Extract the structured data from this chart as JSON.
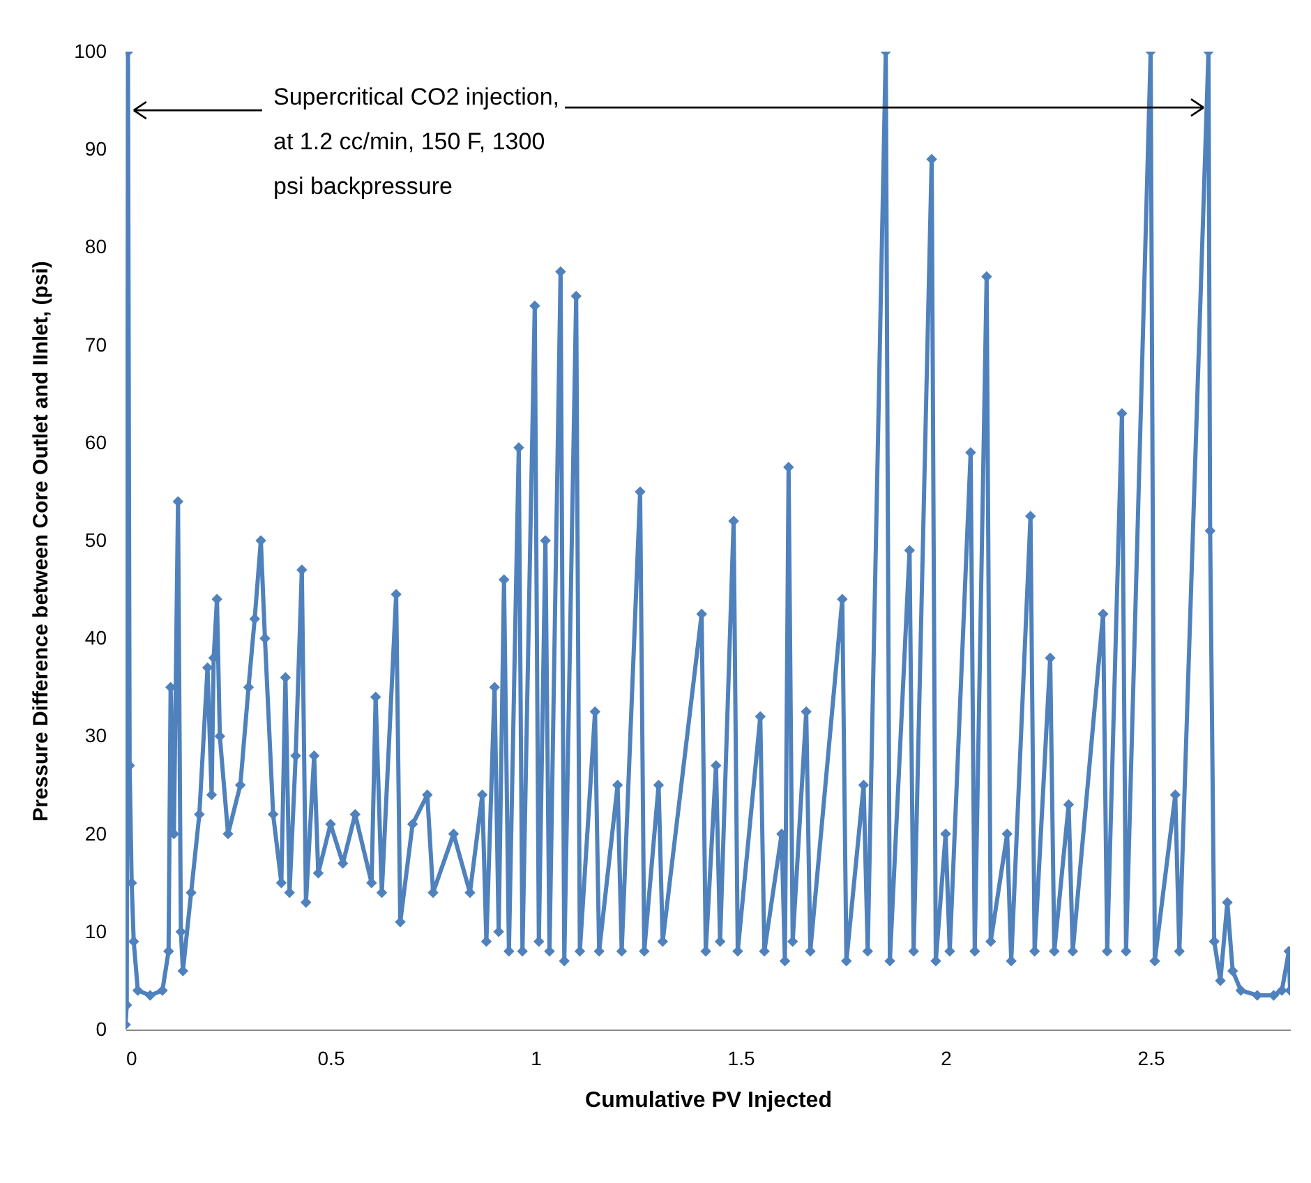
{
  "chart_data": {
    "type": "line",
    "xlabel": "Cumulative PV Injected",
    "ylabel": "Pressure Difference between Core Outlet and IInlet, (psi)",
    "annotations": [
      {
        "text": "Supercritical CO2 injection, at 1.2 cc/min, 150 F, 1300 psi backpressure",
        "x": 0.02,
        "y": 94
      }
    ],
    "xlim": [
      0,
      2.84
    ],
    "xticks": [
      0,
      0.5,
      1,
      1.5,
      2,
      2.5
    ],
    "ylim": [
      0,
      100
    ],
    "yticks": [
      0,
      10,
      20,
      30,
      40,
      50,
      60,
      70,
      80,
      90,
      100
    ],
    "marker": "diamond",
    "grid": false,
    "series": [
      {
        "color": "#4f81bd",
        "x": [
          0,
          0.003,
          0.006,
          0.01,
          0.015,
          0.02,
          0.03,
          0.06,
          0.09,
          0.105,
          0.11,
          0.118,
          0.128,
          0.135,
          0.14,
          0.16,
          0.18,
          0.2,
          0.21,
          0.215,
          0.223,
          0.23,
          0.25,
          0.28,
          0.3,
          0.315,
          0.33,
          0.34,
          0.36,
          0.38,
          0.39,
          0.4,
          0.415,
          0.43,
          0.44,
          0.46,
          0.47,
          0.5,
          0.53,
          0.56,
          0.6,
          0.61,
          0.625,
          0.66,
          0.67,
          0.7,
          0.736,
          0.75,
          0.8,
          0.84,
          0.87,
          0.88,
          0.9,
          0.91,
          0.923,
          0.935,
          0.959,
          0.968,
          0.998,
          1.008,
          1.024,
          1.034,
          1.061,
          1.07,
          1.099,
          1.108,
          1.145,
          1.155,
          1.2,
          1.21,
          1.255,
          1.265,
          1.3,
          1.31,
          1.405,
          1.415,
          1.44,
          1.45,
          1.483,
          1.493,
          1.548,
          1.558,
          1.6,
          1.608,
          1.617,
          1.627,
          1.66,
          1.67,
          1.748,
          1.758,
          1.8,
          1.81,
          1.854,
          1.864,
          1.912,
          1.922,
          1.966,
          1.976,
          2.0,
          2.01,
          2.061,
          2.071,
          2.1,
          2.11,
          2.15,
          2.16,
          2.207,
          2.217,
          2.255,
          2.265,
          2.3,
          2.31,
          2.384,
          2.394,
          2.43,
          2.44,
          2.5,
          2.51,
          2.56,
          2.57,
          2.641,
          2.645,
          2.655,
          2.67,
          2.687,
          2.7,
          2.72,
          2.76,
          2.8,
          2.82,
          2.837,
          2.84
        ],
        "values": [
          0.5,
          2.5,
          100,
          27,
          15,
          9,
          4,
          3.5,
          4,
          8,
          35,
          20,
          54,
          10,
          6,
          14,
          22,
          37,
          24,
          38,
          44,
          30,
          20,
          25,
          35,
          42,
          50,
          40,
          22,
          15,
          36,
          14,
          28,
          47,
          13,
          28,
          16,
          21,
          17,
          22,
          15,
          34,
          14,
          44.5,
          11,
          21,
          24,
          14,
          20,
          14,
          24,
          9,
          35,
          10,
          46,
          8,
          59.5,
          8,
          74,
          9,
          50,
          8,
          77.5,
          7,
          75,
          8,
          32.5,
          8,
          25,
          8,
          55,
          8,
          25,
          9,
          42.5,
          8,
          27,
          9,
          52,
          8,
          32,
          8,
          20,
          7,
          57.5,
          9,
          32.5,
          8,
          44,
          7,
          25,
          8,
          100,
          7,
          49,
          8,
          89,
          7,
          20,
          8,
          59,
          8,
          77,
          9,
          20,
          7,
          52.5,
          8,
          38,
          8,
          23,
          8,
          42.5,
          8,
          63,
          8,
          100,
          7,
          24,
          8,
          100,
          51,
          9,
          5,
          13,
          6,
          4,
          3.5,
          3.5,
          4,
          8,
          4
        ]
      }
    ]
  }
}
